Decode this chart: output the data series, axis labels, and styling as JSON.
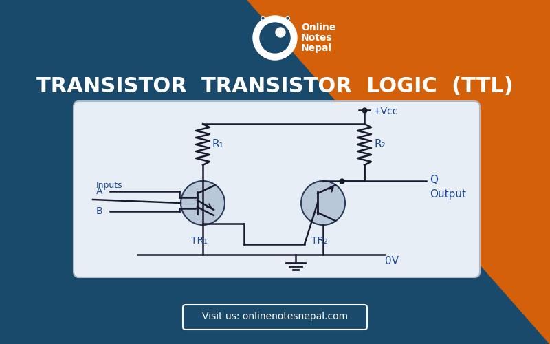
{
  "bg_left_color": "#1a4a6b",
  "bg_right_color": "#d4600a",
  "title_text": "TRANSISTOR  TRANSISTOR  LOGIC  (TTL)",
  "title_color": "#ffffff",
  "title_fontsize": 22,
  "circuit_box_color": "#e8eef5",
  "circuit_box_edge": "#b0b8c8",
  "vcc_label": "+Vcc",
  "r1_label": "R₁",
  "r2_label": "R₂",
  "tr1_label": "TR₁",
  "tr2_label": "TR₂",
  "inputs_label": "Inputs",
  "a_label": "A",
  "b_label": "B",
  "q_label": "Q",
  "output_label": "Output",
  "ov_label": "0V",
  "circuit_color": "#1a1a2e",
  "label_color": "#1a4a9b",
  "footer_text": "Visit us: onlinenotesnepal.com",
  "footer_color": "#ffffff",
  "transistor_fill": "#b8c8d8",
  "transistor_edge": "#2a3a5a"
}
